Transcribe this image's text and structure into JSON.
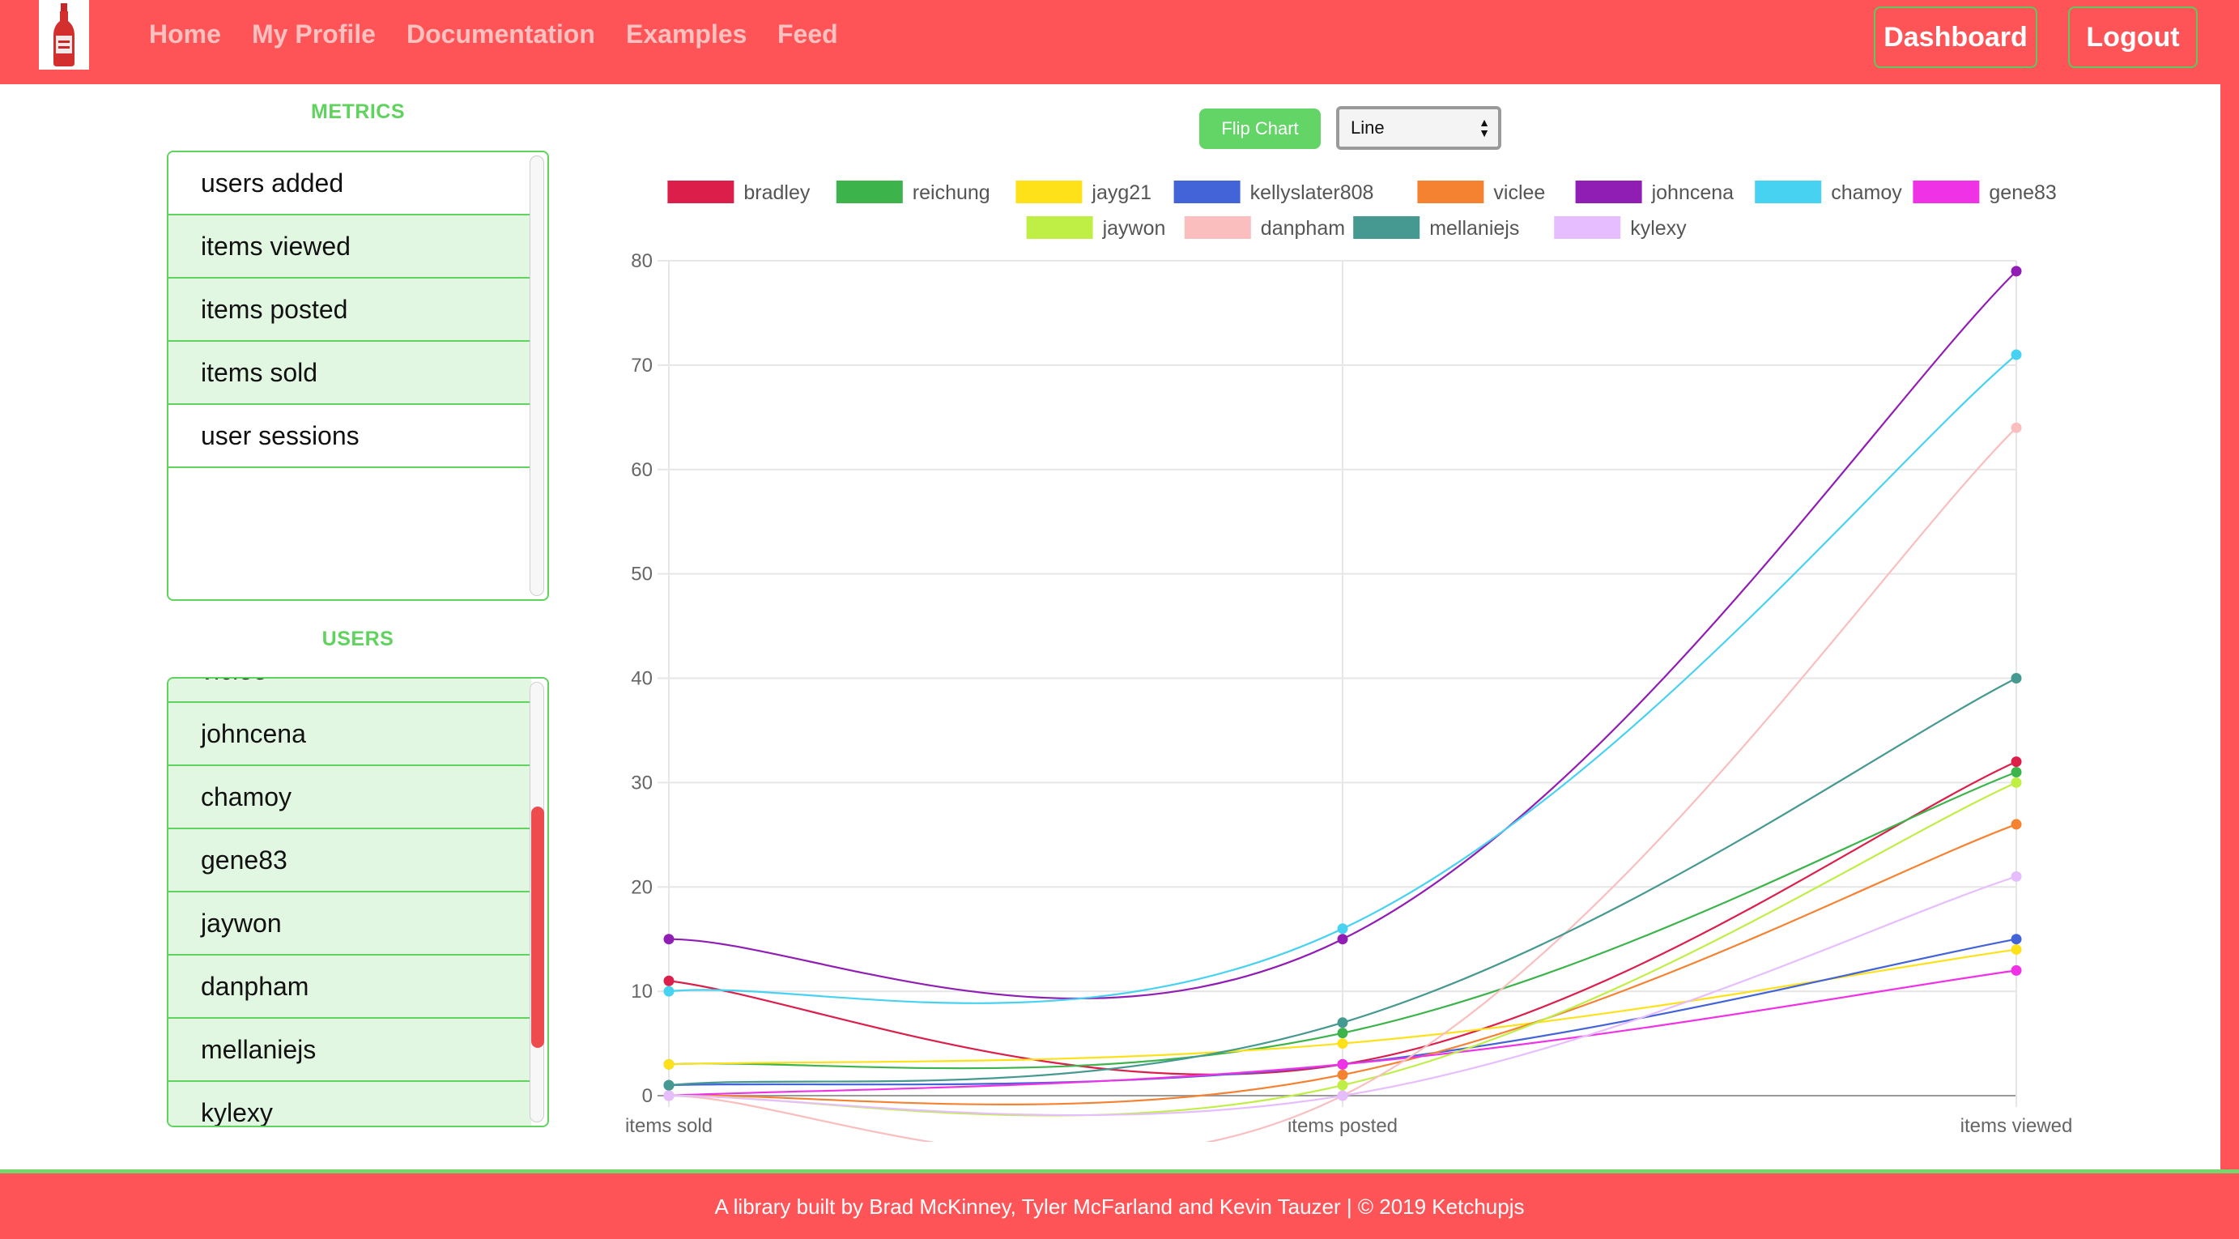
{
  "header": {
    "logo_icon": "ketchup-bottle-logo-icon",
    "nav": [
      "Home",
      "My Profile",
      "Documentation",
      "Examples",
      "Feed"
    ],
    "dashboard_label": "Dashboard",
    "logout_label": "Logout"
  },
  "sidebar": {
    "metrics_heading": "METRICS",
    "metrics": [
      {
        "label": "users added",
        "highlighted": false
      },
      {
        "label": "items viewed",
        "highlighted": true
      },
      {
        "label": "items posted",
        "highlighted": true
      },
      {
        "label": "items sold",
        "highlighted": true
      },
      {
        "label": "user sessions",
        "highlighted": false
      }
    ],
    "users_heading": "USERS",
    "users": [
      {
        "label": "viclee",
        "highlighted": true
      },
      {
        "label": "johncena",
        "highlighted": true
      },
      {
        "label": "chamoy",
        "highlighted": true
      },
      {
        "label": "gene83",
        "highlighted": true
      },
      {
        "label": "jaywon",
        "highlighted": true
      },
      {
        "label": "danpham",
        "highlighted": true
      },
      {
        "label": "mellaniejs",
        "highlighted": true
      },
      {
        "label": "kylexy",
        "highlighted": true
      }
    ],
    "users_scroll_position": 0.62
  },
  "controls": {
    "flip_label": "Flip Chart",
    "chart_type_selected": "Line"
  },
  "chart_data": {
    "type": "line",
    "categories": [
      "items sold",
      "items posted",
      "items viewed"
    ],
    "ylim": [
      0,
      80
    ],
    "yticks": [
      0,
      10,
      20,
      30,
      40,
      50,
      60,
      70,
      80
    ],
    "grid": true,
    "legend_position": "top",
    "series": [
      {
        "name": "bradley",
        "color": "#dc1e4b",
        "values": [
          11,
          3,
          32
        ]
      },
      {
        "name": "reichung",
        "color": "#3cb44b",
        "values": [
          3,
          6,
          31
        ]
      },
      {
        "name": "jayg21",
        "color": "#ffe119",
        "values": [
          3,
          5,
          14
        ]
      },
      {
        "name": "kellyslater808",
        "color": "#4363d8",
        "values": [
          1,
          3,
          15
        ]
      },
      {
        "name": "viclee",
        "color": "#f58231",
        "values": [
          0,
          2,
          26
        ]
      },
      {
        "name": "johncena",
        "color": "#911eb4",
        "values": [
          15,
          15,
          79
        ]
      },
      {
        "name": "chamoy",
        "color": "#46d2f0",
        "values": [
          10,
          16,
          71
        ]
      },
      {
        "name": "gene83",
        "color": "#f032e6",
        "values": [
          0,
          3,
          12
        ]
      },
      {
        "name": "jaywon",
        "color": "#bfef45",
        "values": [
          0,
          1,
          30
        ]
      },
      {
        "name": "danpham",
        "color": "#fabebe",
        "values": [
          0,
          0,
          64
        ]
      },
      {
        "name": "mellaniejs",
        "color": "#469990",
        "values": [
          1,
          7,
          40
        ]
      },
      {
        "name": "kylexy",
        "color": "#e6beff",
        "values": [
          0,
          0,
          21
        ]
      }
    ]
  },
  "footer": {
    "text": "A library built by Brad McKinney, Tyler McFarland and Kevin Tauzer | © 2019 Ketchupjs"
  }
}
